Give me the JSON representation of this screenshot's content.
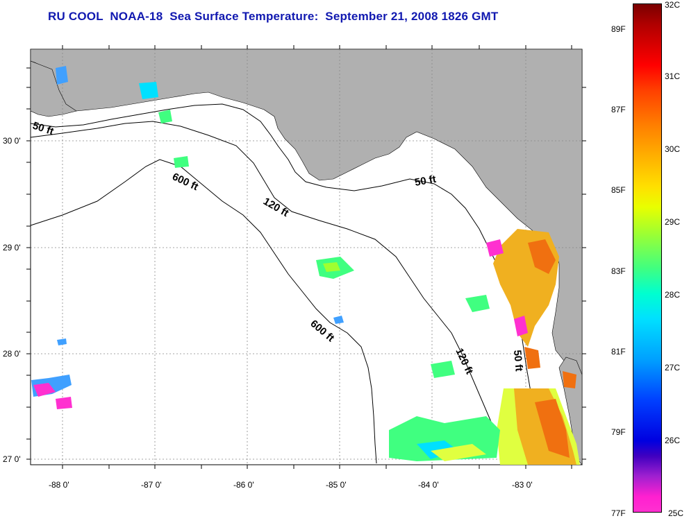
{
  "title": "RU COOL  NOAA-18  Sea Surface Temperature:  September 21, 2008 1826 GMT",
  "map": {
    "lon_labels": [
      "-88 0'",
      "-87 0'",
      "-86 0'",
      "-85 0'",
      "-84 0'",
      "-83 0'"
    ],
    "lat_labels": [
      "30 0'",
      "29 0'",
      "28 0'",
      "27 0'"
    ],
    "contour_labels": [
      "50 ft",
      "600 ft",
      "120 ft",
      "50 ft",
      "600 ft",
      "120 ft",
      "50 ft"
    ],
    "colors": {
      "land": "#b0b0b0",
      "water": "#ffffff",
      "title": "#1018b0"
    }
  },
  "colorbar": {
    "celsius": [
      "32C",
      "31C",
      "30C",
      "29C",
      "28C",
      "27C",
      "26C",
      "25C"
    ],
    "fahrenheit": [
      "89F",
      "87F",
      "85F",
      "83F",
      "81F",
      "79F",
      "77F"
    ]
  }
}
